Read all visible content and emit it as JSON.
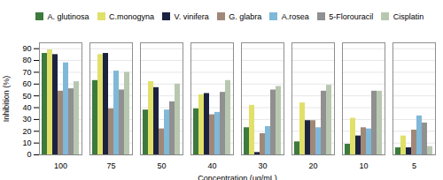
{
  "chart_data": {
    "type": "bar",
    "categories": [
      "100",
      "75",
      "50",
      "40",
      "30",
      "20",
      "10",
      "5"
    ],
    "series": [
      {
        "name": "A. glutinosa",
        "color": "#3d7a3d",
        "values": [
          86,
          63,
          38,
          39,
          23,
          11,
          9,
          6
        ]
      },
      {
        "name": "C.monogyna",
        "color": "#e0e06a",
        "values": [
          89,
          85,
          62,
          51,
          42,
          44,
          31,
          16
        ]
      },
      {
        "name": "V. vinifera",
        "color": "#1c2340",
        "values": [
          85,
          86,
          57,
          52,
          2,
          29,
          16,
          6
        ]
      },
      {
        "name": "G. glabra",
        "color": "#a08878",
        "values": [
          54,
          39,
          22,
          34,
          18,
          29,
          23,
          21
        ]
      },
      {
        "name": "A.rosea",
        "color": "#80b8d8",
        "values": [
          78,
          71,
          38,
          36,
          24,
          23,
          22,
          33
        ]
      },
      {
        "name": "5-Florouracil",
        "color": "#909090",
        "values": [
          56,
          55,
          45,
          53,
          55,
          54,
          54,
          27
        ]
      },
      {
        "name": "Cisplatin",
        "color": "#b8c8b0",
        "values": [
          62,
          70,
          60,
          63,
          58,
          59,
          54,
          7
        ]
      }
    ],
    "xlabel": "Concentration (μg/mL)",
    "ylabel": "Inhibition (%)",
    "ylim": [
      0,
      95
    ],
    "yticks": [
      0,
      10,
      20,
      30,
      40,
      50,
      60,
      70,
      80,
      90
    ],
    "grid": true,
    "legend": "top"
  }
}
